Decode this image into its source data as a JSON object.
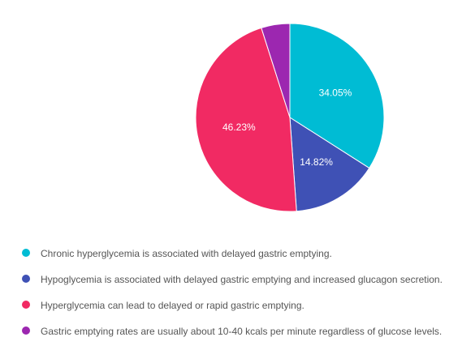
{
  "chart_data": {
    "type": "pie",
    "title": "",
    "legend_position": "bottom",
    "series": [
      {
        "name": "",
        "slices": [
          {
            "label": "Chronic hyperglycemia is associated with delayed gastric emptying.",
            "value": 34.05,
            "display": "34.05%",
            "color": "#00BCD4"
          },
          {
            "label": "Hypoglycemia is associated with delayed gastric emptying and increased glucagon secretion.",
            "value": 14.82,
            "display": "14.82%",
            "color": "#3F51B5"
          },
          {
            "label": "Hyperglycemia can lead to delayed or rapid gastric emptying.",
            "value": 46.23,
            "display": "46.23%",
            "color": "#F12A63"
          },
          {
            "label": "Gastric emptying rates are usually about 10-40 kcals per minute regardless of glucose levels.",
            "value": 4.9,
            "display": "",
            "color": "#9C27B0"
          }
        ]
      }
    ]
  }
}
